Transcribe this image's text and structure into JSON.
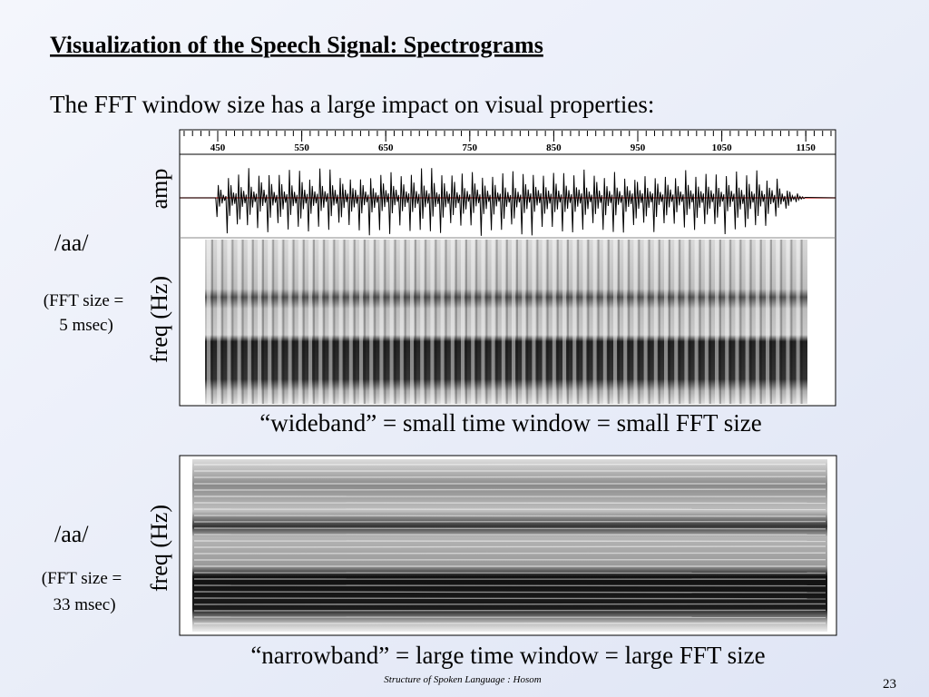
{
  "title": "Visualization of the Speech Signal: Spectrograms",
  "intro": "The FFT window size has a large impact on visual properties:",
  "ruler": {
    "ticks": [
      450,
      550,
      650,
      750,
      850,
      950,
      1050,
      1150
    ]
  },
  "panels": [
    {
      "amp_label": "amp",
      "freq_label": "freq (Hz)",
      "phoneme": "/aa/",
      "fft_note": [
        "(FFT size =",
        "5 msec)"
      ],
      "caption": "“wideband” = small time window = small FFT size"
    },
    {
      "freq_label": "freq (Hz)",
      "phoneme": "/aa/",
      "fft_note": [
        "(FFT size =",
        "33 msec)"
      ],
      "caption": "“narrowband” = large time window = large FFT size"
    }
  ],
  "footer": "Structure of Spoken Language : Hosom",
  "page_number": 23
}
